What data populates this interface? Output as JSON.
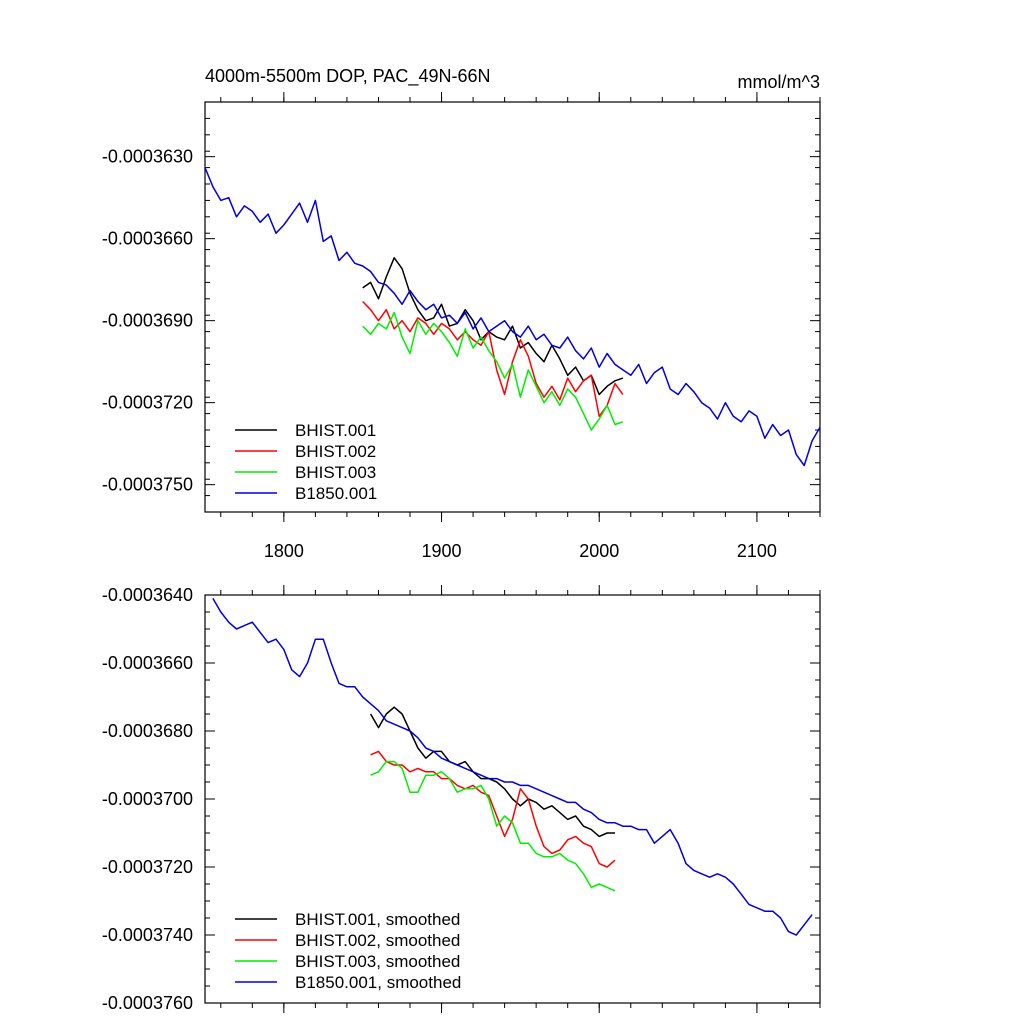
{
  "chart_data": [
    {
      "type": "line",
      "title_left": "4000m-5500m DOP, PAC_49N-66N",
      "title_right": "mmol/m^3",
      "xlabel": "",
      "ylabel": "",
      "xlim": [
        1750,
        2140
      ],
      "ylim": [
        -0.000376,
        -0.000361
      ],
      "x_ticks": [
        1800,
        1900,
        2000,
        2100
      ],
      "x_tick_labels": [
        "1800",
        "1900",
        "2000",
        "2100"
      ],
      "y_ticks": [
        -0.000363,
        -0.000366,
        -0.000369,
        -0.000372,
        -0.000375
      ],
      "y_tick_labels": [
        "-0.0003630",
        "-0.0003660",
        "-0.0003690",
        "-0.0003720",
        "-0.0003750"
      ],
      "legend_position": "bottom-left",
      "series": [
        {
          "name": "BHIST.001",
          "color": "#000000",
          "x": [
            1850,
            1855,
            1860,
            1865,
            1870,
            1875,
            1880,
            1885,
            1890,
            1895,
            1900,
            1905,
            1910,
            1915,
            1920,
            1925,
            1930,
            1935,
            1940,
            1945,
            1950,
            1955,
            1960,
            1965,
            1970,
            1975,
            1980,
            1985,
            1990,
            1995,
            2000,
            2005,
            2010,
            2015
          ],
          "y": [
            -0.0003678,
            -0.0003676,
            -0.0003682,
            -0.0003674,
            -0.0003667,
            -0.0003671,
            -0.000368,
            -0.0003686,
            -0.000369,
            -0.0003689,
            -0.0003684,
            -0.0003692,
            -0.0003691,
            -0.0003686,
            -0.000369,
            -0.0003697,
            -0.0003694,
            -0.0003696,
            -0.0003697,
            -0.0003692,
            -0.00037,
            -0.0003698,
            -0.0003702,
            -0.0003705,
            -0.0003699,
            -0.0003704,
            -0.000371,
            -0.0003707,
            -0.0003712,
            -0.000371,
            -0.0003717,
            -0.0003714,
            -0.0003712,
            -0.0003711
          ]
        },
        {
          "name": "BHIST.002",
          "color": "#ff0000",
          "x": [
            1850,
            1855,
            1860,
            1865,
            1870,
            1875,
            1880,
            1885,
            1890,
            1895,
            1900,
            1905,
            1910,
            1915,
            1920,
            1925,
            1930,
            1935,
            1940,
            1945,
            1950,
            1955,
            1960,
            1965,
            1970,
            1975,
            1980,
            1985,
            1990,
            1995,
            2000,
            2005,
            2010,
            2015
          ],
          "y": [
            -0.0003683,
            -0.0003686,
            -0.000369,
            -0.0003686,
            -0.0003693,
            -0.000369,
            -0.0003694,
            -0.0003689,
            -0.0003691,
            -0.0003695,
            -0.0003691,
            -0.0003693,
            -0.0003697,
            -0.0003694,
            -0.0003697,
            -0.0003699,
            -0.0003694,
            -0.0003708,
            -0.0003717,
            -0.0003705,
            -0.0003697,
            -0.0003703,
            -0.0003713,
            -0.0003718,
            -0.0003714,
            -0.0003719,
            -0.0003711,
            -0.0003716,
            -0.0003712,
            -0.000371,
            -0.0003725,
            -0.0003721,
            -0.0003713,
            -0.0003717
          ]
        },
        {
          "name": "BHIST.003",
          "color": "#00ee00",
          "x": [
            1850,
            1855,
            1860,
            1865,
            1870,
            1875,
            1880,
            1885,
            1890,
            1895,
            1900,
            1905,
            1910,
            1915,
            1920,
            1925,
            1930,
            1935,
            1940,
            1945,
            1950,
            1955,
            1960,
            1965,
            1970,
            1975,
            1980,
            1985,
            1990,
            1995,
            2000,
            2005,
            2010,
            2015
          ],
          "y": [
            -0.0003692,
            -0.0003695,
            -0.0003691,
            -0.0003693,
            -0.0003687,
            -0.0003696,
            -0.0003702,
            -0.000369,
            -0.0003695,
            -0.0003691,
            -0.0003694,
            -0.0003698,
            -0.0003703,
            -0.0003693,
            -0.00037,
            -0.0003696,
            -0.0003701,
            -0.0003705,
            -0.0003711,
            -0.0003706,
            -0.0003718,
            -0.0003708,
            -0.0003714,
            -0.000372,
            -0.0003716,
            -0.0003721,
            -0.0003715,
            -0.0003718,
            -0.0003724,
            -0.000373,
            -0.0003726,
            -0.0003721,
            -0.0003728,
            -0.0003727
          ]
        },
        {
          "name": "B1850.001",
          "color": "#0000dd",
          "x": [
            1750,
            1755,
            1760,
            1765,
            1770,
            1775,
            1780,
            1785,
            1790,
            1795,
            1800,
            1805,
            1810,
            1815,
            1820,
            1825,
            1830,
            1835,
            1840,
            1845,
            1850,
            1855,
            1860,
            1865,
            1870,
            1875,
            1880,
            1885,
            1890,
            1895,
            1900,
            1905,
            1910,
            1915,
            1920,
            1925,
            1930,
            1935,
            1940,
            1945,
            1950,
            1955,
            1960,
            1965,
            1970,
            1975,
            1980,
            1985,
            1990,
            1995,
            2000,
            2005,
            2010,
            2015,
            2020,
            2025,
            2030,
            2035,
            2040,
            2045,
            2050,
            2055,
            2060,
            2065,
            2070,
            2075,
            2080,
            2085,
            2090,
            2095,
            2100,
            2105,
            2110,
            2115,
            2120,
            2125,
            2130,
            2135,
            2140
          ],
          "y": [
            -0.0003634,
            -0.0003641,
            -0.0003646,
            -0.0003645,
            -0.0003652,
            -0.0003648,
            -0.000365,
            -0.0003654,
            -0.0003651,
            -0.0003658,
            -0.0003655,
            -0.0003651,
            -0.0003647,
            -0.0003654,
            -0.0003646,
            -0.0003661,
            -0.0003659,
            -0.0003668,
            -0.0003665,
            -0.0003669,
            -0.000367,
            -0.0003672,
            -0.0003676,
            -0.0003677,
            -0.000368,
            -0.0003684,
            -0.0003679,
            -0.0003683,
            -0.0003686,
            -0.0003684,
            -0.0003689,
            -0.0003688,
            -0.0003691,
            -0.0003687,
            -0.0003693,
            -0.0003689,
            -0.0003694,
            -0.0003692,
            -0.000369,
            -0.0003694,
            -0.0003696,
            -0.0003692,
            -0.0003697,
            -0.0003695,
            -0.0003699,
            -0.00037,
            -0.0003696,
            -0.0003701,
            -0.0003704,
            -0.00037,
            -0.0003707,
            -0.0003702,
            -0.0003706,
            -0.0003708,
            -0.000371,
            -0.0003706,
            -0.0003713,
            -0.0003709,
            -0.0003707,
            -0.0003715,
            -0.0003717,
            -0.0003713,
            -0.0003716,
            -0.000372,
            -0.0003722,
            -0.0003726,
            -0.000372,
            -0.0003725,
            -0.0003727,
            -0.0003723,
            -0.0003725,
            -0.0003733,
            -0.0003728,
            -0.0003732,
            -0.000373,
            -0.0003739,
            -0.0003743,
            -0.0003734,
            -0.0003729
          ]
        }
      ]
    },
    {
      "type": "line",
      "title_left": "",
      "title_right": "",
      "xlabel": "",
      "ylabel": "",
      "xlim": [
        1750,
        2140
      ],
      "ylim": [
        -0.000376,
        -0.000364
      ],
      "x_ticks": [
        1800,
        1900,
        2000,
        2100
      ],
      "x_tick_labels": [],
      "y_ticks": [
        -0.000364,
        -0.000366,
        -0.000368,
        -0.00037,
        -0.000372,
        -0.000374,
        -0.000376
      ],
      "y_tick_labels": [
        "-0.0003640",
        "-0.0003660",
        "-0.0003680",
        "-0.0003700",
        "-0.0003720",
        "-0.0003740",
        "-0.0003760"
      ],
      "legend_position": "bottom-left",
      "series": [
        {
          "name": "BHIST.001, smoothed",
          "color": "#000000",
          "x": [
            1855,
            1860,
            1865,
            1870,
            1875,
            1880,
            1885,
            1890,
            1895,
            1900,
            1905,
            1910,
            1915,
            1920,
            1925,
            1930,
            1935,
            1940,
            1945,
            1950,
            1955,
            1960,
            1965,
            1970,
            1975,
            1980,
            1985,
            1990,
            1995,
            2000,
            2005,
            2010
          ],
          "y": [
            -0.0003675,
            -0.0003679,
            -0.0003675,
            -0.0003673,
            -0.0003675,
            -0.000368,
            -0.0003685,
            -0.0003688,
            -0.0003686,
            -0.0003686,
            -0.0003689,
            -0.000369,
            -0.0003689,
            -0.0003692,
            -0.0003694,
            -0.0003694,
            -0.0003695,
            -0.0003697,
            -0.00037,
            -0.0003702,
            -0.00037,
            -0.0003701,
            -0.0003703,
            -0.0003702,
            -0.0003704,
            -0.0003706,
            -0.0003705,
            -0.0003708,
            -0.0003709,
            -0.0003711,
            -0.000371,
            -0.000371
          ]
        },
        {
          "name": "BHIST.002, smoothed",
          "color": "#ff0000",
          "x": [
            1855,
            1860,
            1865,
            1870,
            1875,
            1880,
            1885,
            1890,
            1895,
            1900,
            1905,
            1910,
            1915,
            1920,
            1925,
            1930,
            1935,
            1940,
            1945,
            1950,
            1955,
            1960,
            1965,
            1970,
            1975,
            1980,
            1985,
            1990,
            1995,
            2000,
            2005,
            2010
          ],
          "y": [
            -0.0003687,
            -0.0003686,
            -0.0003689,
            -0.000369,
            -0.000369,
            -0.0003692,
            -0.0003691,
            -0.0003692,
            -0.0003692,
            -0.0003694,
            -0.0003694,
            -0.0003696,
            -0.0003697,
            -0.0003696,
            -0.0003698,
            -0.0003699,
            -0.0003705,
            -0.0003711,
            -0.0003706,
            -0.0003697,
            -0.00037,
            -0.0003708,
            -0.0003714,
            -0.0003716,
            -0.0003715,
            -0.0003712,
            -0.0003711,
            -0.0003713,
            -0.0003714,
            -0.0003719,
            -0.000372,
            -0.0003718
          ]
        },
        {
          "name": "BHIST.003, smoothed",
          "color": "#00ee00",
          "x": [
            1855,
            1860,
            1865,
            1870,
            1875,
            1880,
            1885,
            1890,
            1895,
            1900,
            1905,
            1910,
            1915,
            1920,
            1925,
            1930,
            1935,
            1940,
            1945,
            1950,
            1955,
            1960,
            1965,
            1970,
            1975,
            1980,
            1985,
            1990,
            1995,
            2000,
            2005,
            2010
          ],
          "y": [
            -0.0003693,
            -0.0003692,
            -0.0003689,
            -0.0003689,
            -0.0003691,
            -0.0003698,
            -0.0003698,
            -0.0003693,
            -0.0003693,
            -0.0003692,
            -0.0003694,
            -0.0003698,
            -0.0003697,
            -0.0003697,
            -0.0003696,
            -0.00037,
            -0.0003708,
            -0.0003705,
            -0.0003707,
            -0.0003713,
            -0.0003713,
            -0.0003716,
            -0.0003717,
            -0.0003717,
            -0.0003716,
            -0.0003718,
            -0.0003719,
            -0.0003722,
            -0.0003726,
            -0.0003725,
            -0.0003726,
            -0.0003727
          ]
        },
        {
          "name": "B1850.001, smoothed",
          "color": "#0000dd",
          "x": [
            1755,
            1760,
            1765,
            1770,
            1775,
            1780,
            1785,
            1790,
            1795,
            1800,
            1805,
            1810,
            1815,
            1820,
            1825,
            1830,
            1835,
            1840,
            1845,
            1850,
            1855,
            1860,
            1865,
            1870,
            1875,
            1880,
            1885,
            1890,
            1895,
            1900,
            1905,
            1910,
            1915,
            1920,
            1925,
            1930,
            1935,
            1940,
            1945,
            1950,
            1955,
            1960,
            1965,
            1970,
            1975,
            1980,
            1985,
            1990,
            1995,
            2000,
            2005,
            2010,
            2015,
            2020,
            2025,
            2030,
            2035,
            2040,
            2045,
            2050,
            2055,
            2060,
            2065,
            2070,
            2075,
            2080,
            2085,
            2090,
            2095,
            2100,
            2105,
            2110,
            2115,
            2120,
            2125,
            2130,
            2135
          ],
          "y": [
            -0.0003641,
            -0.0003645,
            -0.0003648,
            -0.000365,
            -0.0003649,
            -0.0003648,
            -0.0003651,
            -0.0003654,
            -0.0003653,
            -0.0003656,
            -0.0003662,
            -0.0003664,
            -0.000366,
            -0.0003653,
            -0.0003653,
            -0.000366,
            -0.0003666,
            -0.0003667,
            -0.0003667,
            -0.000367,
            -0.0003672,
            -0.0003674,
            -0.0003677,
            -0.0003678,
            -0.0003679,
            -0.000368,
            -0.0003682,
            -0.0003685,
            -0.0003686,
            -0.0003688,
            -0.0003689,
            -0.000369,
            -0.0003691,
            -0.0003692,
            -0.0003693,
            -0.0003694,
            -0.0003694,
            -0.0003695,
            -0.0003695,
            -0.0003696,
            -0.0003696,
            -0.0003697,
            -0.0003698,
            -0.0003699,
            -0.00037,
            -0.0003701,
            -0.0003701,
            -0.0003703,
            -0.0003704,
            -0.0003706,
            -0.0003707,
            -0.0003707,
            -0.0003708,
            -0.0003708,
            -0.0003709,
            -0.0003709,
            -0.0003713,
            -0.0003711,
            -0.0003709,
            -0.0003713,
            -0.0003719,
            -0.0003721,
            -0.0003722,
            -0.0003723,
            -0.0003722,
            -0.0003723,
            -0.0003725,
            -0.0003728,
            -0.0003731,
            -0.0003732,
            -0.0003733,
            -0.0003733,
            -0.0003735,
            -0.0003739,
            -0.000374,
            -0.0003737,
            -0.0003734
          ]
        }
      ]
    }
  ]
}
